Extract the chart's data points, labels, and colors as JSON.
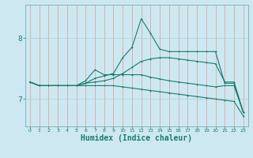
{
  "background_color": "#cde8f0",
  "grid_color": "#a8d0dc",
  "line_color": "#1a7a6e",
  "xlabel": "Humidex (Indice chaleur)",
  "xlabel_fontsize": 7,
  "yticks": [
    7,
    8
  ],
  "xticks": [
    0,
    1,
    2,
    3,
    4,
    5,
    6,
    7,
    8,
    9,
    10,
    11,
    12,
    13,
    14,
    15,
    16,
    17,
    18,
    19,
    20,
    21,
    22,
    23
  ],
  "xlim": [
    -0.5,
    23.5
  ],
  "ylim": [
    6.55,
    8.55
  ],
  "line1_x": [
    0,
    1,
    2,
    3,
    4,
    5,
    6,
    7,
    8,
    9,
    10,
    11,
    12,
    13,
    14,
    15,
    16,
    17,
    18,
    19,
    20,
    21,
    22,
    23
  ],
  "line1_y": [
    7.28,
    7.22,
    7.22,
    7.22,
    7.22,
    7.22,
    7.26,
    7.34,
    7.38,
    7.42,
    7.68,
    7.85,
    8.32,
    8.08,
    7.82,
    7.78,
    7.78,
    7.78,
    7.78,
    7.78,
    7.78,
    7.26,
    7.26,
    6.78
  ],
  "line2_x": [
    0,
    1,
    2,
    3,
    4,
    5,
    6,
    7,
    8,
    9,
    10,
    11,
    12,
    13,
    14,
    15,
    16,
    17,
    18,
    19,
    20,
    21,
    22,
    23
  ],
  "line2_y": [
    7.28,
    7.22,
    7.22,
    7.22,
    7.22,
    7.22,
    7.26,
    7.28,
    7.3,
    7.34,
    7.42,
    7.52,
    7.62,
    7.66,
    7.68,
    7.68,
    7.66,
    7.64,
    7.62,
    7.6,
    7.58,
    7.28,
    7.28,
    6.78
  ],
  "line3_x": [
    0,
    1,
    2,
    3,
    4,
    5,
    6,
    7,
    8,
    9,
    10,
    11,
    12,
    13,
    14,
    15,
    16,
    17,
    18,
    19,
    20,
    21,
    22,
    23
  ],
  "line3_y": [
    7.28,
    7.22,
    7.22,
    7.22,
    7.22,
    7.22,
    7.3,
    7.48,
    7.4,
    7.4,
    7.4,
    7.4,
    7.4,
    7.36,
    7.33,
    7.3,
    7.28,
    7.26,
    7.24,
    7.22,
    7.2,
    7.22,
    7.22,
    6.78
  ],
  "line4_x": [
    0,
    1,
    2,
    3,
    4,
    5,
    6,
    7,
    8,
    9,
    10,
    11,
    12,
    13,
    14,
    15,
    16,
    17,
    18,
    19,
    20,
    21,
    22,
    23
  ],
  "line4_y": [
    7.28,
    7.22,
    7.22,
    7.22,
    7.22,
    7.22,
    7.22,
    7.22,
    7.22,
    7.22,
    7.2,
    7.18,
    7.16,
    7.14,
    7.12,
    7.1,
    7.08,
    7.06,
    7.04,
    7.02,
    7.0,
    6.98,
    6.96,
    6.72
  ]
}
